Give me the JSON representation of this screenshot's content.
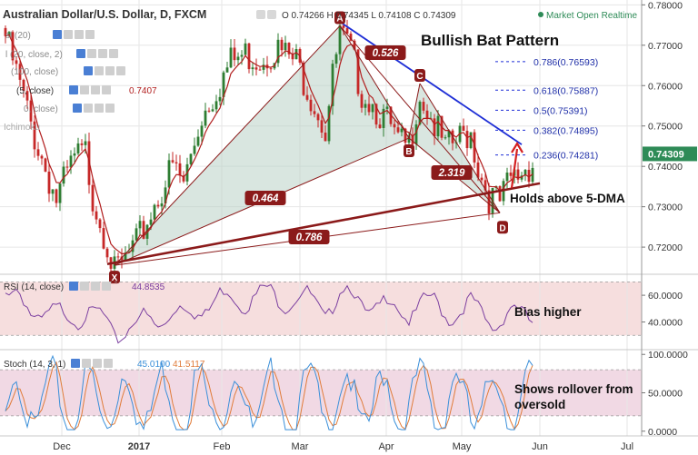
{
  "window": {
    "title": "Australian Dollar/U.S. Dollar, D, FXCM",
    "ohlc_text": "O 0.74266 H 0.74345 L 0.74108 C 0.74309",
    "status": "Market Open",
    "status_right": "Realtime"
  },
  "indicators": {
    "sma20": "sl (20)",
    "ema20": "l (20, close, 2)",
    "sma100": "(100, close)",
    "ema5": "(5, close)",
    "ema5_value": "0.7407",
    "row5": "0, close)",
    "ichimoku": "Ichimoku"
  },
  "colors": {
    "accent": "#2962ff",
    "bull": "#2e7d32",
    "bear": "#c62828",
    "pattern": "#8b1a1a",
    "channel": "#1f2fd6",
    "ma": "#b11d1d",
    "rsi": "#7b3fa0",
    "stoch_k": "#3a8fd9",
    "stoch_d": "#e07b39",
    "panel_bg": "#f6dede",
    "price_tag": "#2e8b57"
  },
  "chart_data": [
    {
      "type": "candlestick",
      "title": "Bullish Bat Pattern",
      "ylim": [
        0.7135,
        0.7812
      ],
      "yticks": [
        0.72,
        0.73,
        0.74,
        0.75,
        0.76,
        0.77,
        0.78
      ],
      "ytick_labels": [
        "0.72000",
        "0.73000",
        "0.74000",
        "0.75000",
        "0.76000",
        "0.77000",
        "0.78000"
      ],
      "xtick_labels": [
        "Dec",
        "2017",
        "Feb",
        "Mar",
        "Apr",
        "May",
        "Jun",
        "Jul"
      ],
      "last_price": "0.74309",
      "pattern_points": [
        {
          "label": "X",
          "bar": 30,
          "price": 0.7155
        },
        {
          "label": "A",
          "bar": 92,
          "price": 0.7748
        },
        {
          "label": "B",
          "bar": 111,
          "price": 0.747
        },
        {
          "label": "C",
          "bar": 114,
          "price": 0.7605
        },
        {
          "label": "D",
          "bar": 136,
          "price": 0.7285
        }
      ],
      "ratios": [
        "0.464",
        "0.526",
        "2.319",
        "0.786"
      ],
      "fib_levels": [
        {
          "label": "0.786(0.76593)",
          "price": 0.76593
        },
        {
          "label": "0.618(0.75887)",
          "price": 0.75887
        },
        {
          "label": "0.5(0.75391)",
          "price": 0.75391
        },
        {
          "label": "0.382(0.74895)",
          "price": 0.74895
        },
        {
          "label": "0.236(0.74281)",
          "price": 0.74281
        }
      ],
      "annotations": [
        "Holds above 5-DMA"
      ]
    },
    {
      "type": "line",
      "title": "RSI (14, close)",
      "current_value": "44.8535",
      "ylim": [
        20,
        75
      ],
      "yticks": [
        40,
        60
      ],
      "ytick_labels": [
        "40.0000",
        "60.0000"
      ],
      "band": [
        30,
        70
      ],
      "annotation": "Bias higher"
    },
    {
      "type": "line",
      "title": "Stoch (14, 3, 1)",
      "k_value": "45.0100",
      "d_value": "41.5117",
      "ylim": [
        -5,
        105
      ],
      "yticks": [
        0,
        50,
        100
      ],
      "ytick_labels": [
        "0.0000",
        "50.0000",
        "100.0000"
      ],
      "band": [
        20,
        80
      ],
      "annotation_lines": [
        "Shows rollover from",
        "oversold"
      ]
    }
  ]
}
